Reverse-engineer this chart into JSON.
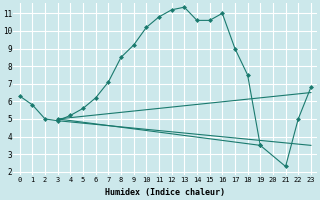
{
  "xlabel": "Humidex (Indice chaleur)",
  "bg_color": "#cce8eb",
  "line_color": "#1a7a6e",
  "grid_color": "#ffffff",
  "xlim": [
    -0.5,
    23.5
  ],
  "ylim": [
    1.8,
    11.6
  ],
  "yticks": [
    2,
    3,
    4,
    5,
    6,
    7,
    8,
    9,
    10,
    11
  ],
  "xticks": [
    0,
    1,
    2,
    3,
    4,
    5,
    6,
    7,
    8,
    9,
    10,
    11,
    12,
    13,
    14,
    15,
    16,
    17,
    18,
    19,
    20,
    21,
    22,
    23
  ],
  "lines": [
    {
      "x": [
        0,
        1,
        2,
        3,
        4,
        5,
        6,
        7,
        8,
        9,
        10,
        11,
        12,
        13,
        14,
        15,
        16,
        17,
        18,
        19
      ],
      "y": [
        6.3,
        5.8,
        5.0,
        4.9,
        5.2,
        5.6,
        6.2,
        7.1,
        8.5,
        9.2,
        10.2,
        10.8,
        11.2,
        11.35,
        10.6,
        10.6,
        11.0,
        9.0,
        7.5,
        3.5
      ],
      "marker": true
    },
    {
      "x": [
        3,
        23
      ],
      "y": [
        4.9,
        3.5
      ],
      "marker": false
    },
    {
      "x": [
        3,
        23
      ],
      "y": [
        5.0,
        6.5
      ],
      "marker": false
    },
    {
      "x": [
        3,
        19,
        21,
        22,
        23
      ],
      "y": [
        5.0,
        3.5,
        2.3,
        5.0,
        6.8
      ],
      "marker": true
    }
  ]
}
